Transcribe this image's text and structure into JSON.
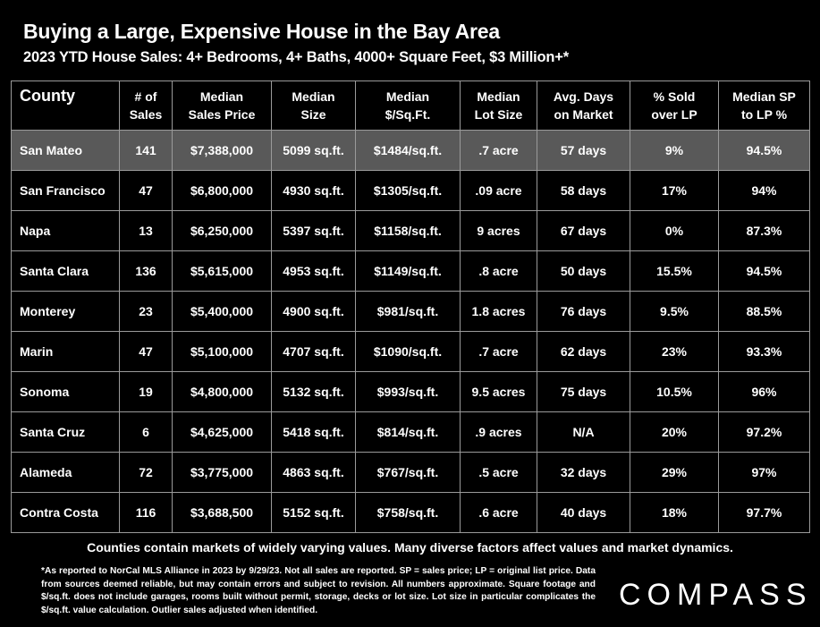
{
  "title": "Buying a Large, Expensive House in the Bay Area",
  "subtitle": "2023 YTD House Sales:  4+ Bedrooms, 4+ Baths, 4000+ Square Feet, $3 Million+*",
  "chart_data": {
    "type": "table",
    "headers": [
      [
        "County"
      ],
      [
        "# of",
        "Sales"
      ],
      [
        "Median",
        "Sales Price"
      ],
      [
        "Median",
        "Size"
      ],
      [
        "Median",
        "$/Sq.Ft."
      ],
      [
        "Median",
        "Lot Size"
      ],
      [
        "Avg. Days",
        "on Market"
      ],
      [
        "% Sold",
        "over LP"
      ],
      [
        "Median SP",
        "to LP %"
      ]
    ],
    "rows": [
      {
        "county": "San Mateo",
        "sales": "141",
        "price": "$7,388,000",
        "size": "5099 sq.ft.",
        "ppsf": "$1484/sq.ft.",
        "lot": ".7 acre",
        "dom": "57 days",
        "over_lp": "9%",
        "sp_lp": "94.5%"
      },
      {
        "county": "San Francisco",
        "sales": "47",
        "price": "$6,800,000",
        "size": "4930 sq.ft.",
        "ppsf": "$1305/sq.ft.",
        "lot": ".09 acre",
        "dom": "58 days",
        "over_lp": "17%",
        "sp_lp": "94%"
      },
      {
        "county": "Napa",
        "sales": "13",
        "price": "$6,250,000",
        "size": "5397 sq.ft.",
        "ppsf": "$1158/sq.ft.",
        "lot": "9 acres",
        "dom": "67 days",
        "over_lp": "0%",
        "sp_lp": "87.3%"
      },
      {
        "county": "Santa Clara",
        "sales": "136",
        "price": "$5,615,000",
        "size": "4953 sq.ft.",
        "ppsf": "$1149/sq.ft.",
        "lot": ".8 acre",
        "dom": "50 days",
        "over_lp": "15.5%",
        "sp_lp": "94.5%"
      },
      {
        "county": "Monterey",
        "sales": "23",
        "price": "$5,400,000",
        "size": "4900 sq.ft.",
        "ppsf": "$981/sq.ft.",
        "lot": "1.8 acres",
        "dom": "76 days",
        "over_lp": "9.5%",
        "sp_lp": "88.5%"
      },
      {
        "county": "Marin",
        "sales": "47",
        "price": "$5,100,000",
        "size": "4707 sq.ft.",
        "ppsf": "$1090/sq.ft.",
        "lot": ".7 acre",
        "dom": "62 days",
        "over_lp": "23%",
        "sp_lp": "93.3%"
      },
      {
        "county": "Sonoma",
        "sales": "19",
        "price": "$4,800,000",
        "size": "5132 sq.ft.",
        "ppsf": "$993/sq.ft.",
        "lot": "9.5 acres",
        "dom": "75 days",
        "over_lp": "10.5%",
        "sp_lp": "96%"
      },
      {
        "county": "Santa Cruz",
        "sales": "6",
        "price": "$4,625,000",
        "size": "5418 sq.ft.",
        "ppsf": "$814/sq.ft.",
        "lot": ".9 acres",
        "dom": "N/A",
        "over_lp": "20%",
        "sp_lp": "97.2%"
      },
      {
        "county": "Alameda",
        "sales": "72",
        "price": "$3,775,000",
        "size": "4863 sq.ft.",
        "ppsf": "$767/sq.ft.",
        "lot": ".5 acre",
        "dom": "32 days",
        "over_lp": "29%",
        "sp_lp": "97%"
      },
      {
        "county": "Contra Costa",
        "sales": "116",
        "price": "$3,688,500",
        "size": "5152 sq.ft.",
        "ppsf": "$758/sq.ft.",
        "lot": ".6 acre",
        "dom": "40 days",
        "over_lp": "18%",
        "sp_lp": "97.7%"
      }
    ],
    "highlight_row": 0
  },
  "footer_note": "Counties contain markets of widely varying values. Many diverse factors affect values and market dynamics.",
  "disclaimer": "*As reported to NorCal MLS Alliance in 2023 by 9/29/23. Not all sales are reported. SP = sales price;  LP = original list price. Data from sources deemed reliable, but may contain errors and subject to revision. All numbers approximate. Square footage and $/sq.ft. does not include garages, rooms built without permit, storage, decks or lot size. Lot size in particular complicates the $/sq.ft. value calculation. Outlier sales adjusted when identified.",
  "logo_text": "COMPASS",
  "colors": {
    "background": "#000000",
    "text": "#ffffff",
    "highlight_row": "#595959",
    "grid": "#9a9a9a"
  }
}
